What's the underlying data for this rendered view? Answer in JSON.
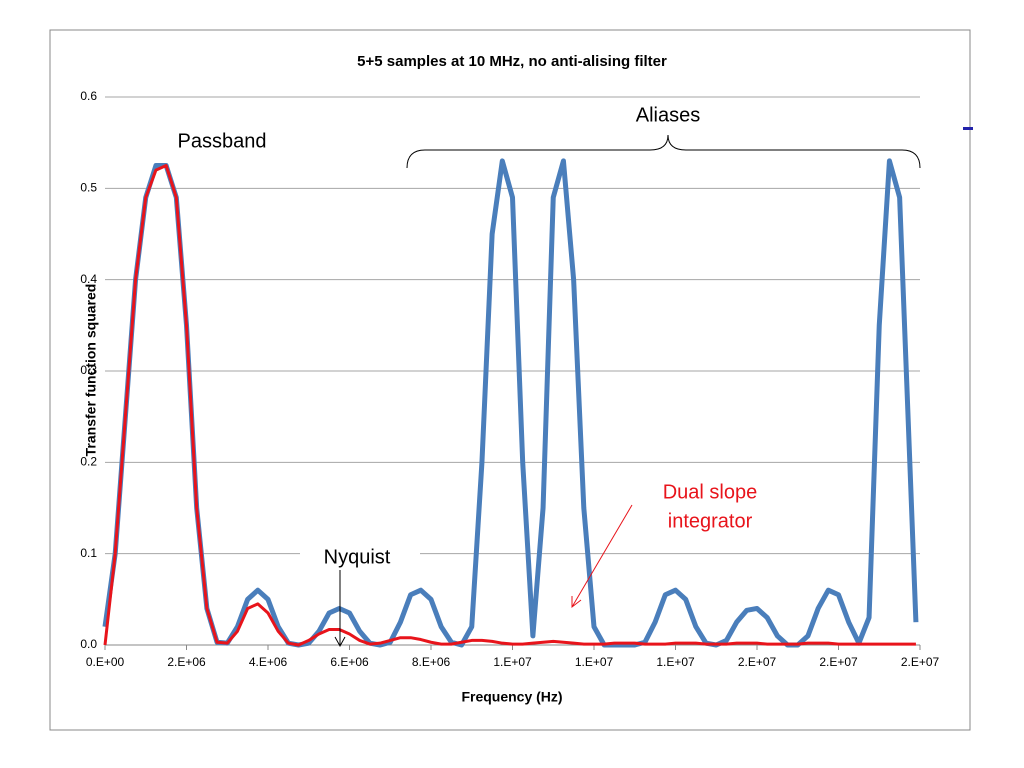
{
  "chart_data": {
    "type": "line",
    "title": "5+5 samples at 10 MHz, no anti-alising filter",
    "x_label": "Frequency (Hz)",
    "y_label": "Transfer function squared",
    "annotations": [
      "Passband",
      "Aliases",
      "Nyquist",
      "Dual slope",
      "integrator"
    ],
    "x": [
      0,
      250000,
      500000,
      750000,
      1000000,
      1250000,
      1500000,
      1750000,
      2000000,
      2250000,
      2500000,
      2750000,
      3000000,
      3250000,
      3500000,
      3750000,
      4000000,
      4250000,
      4500000,
      4750000,
      5000000,
      5250000,
      5500000,
      5750000,
      6000000,
      6250000,
      6500000,
      6750000,
      7000000,
      7250000,
      7500000,
      7750000,
      8000000,
      8250000,
      8500000,
      8750000,
      9000000,
      9250000,
      9500000,
      9750000,
      10000000,
      10250000,
      10500000,
      10750000,
      11000000,
      11250000,
      11500000,
      11750000,
      12000000,
      12250000,
      12500000,
      12750000,
      13000000,
      13250000,
      13500000,
      13750000,
      14000000,
      14250000,
      14500000,
      14750000,
      15000000,
      15250000,
      15500000,
      15750000,
      16000000,
      16250000,
      16500000,
      16750000,
      17000000,
      17250000,
      17500000,
      17750000,
      18000000,
      18250000,
      18500000,
      18750000,
      19000000,
      19250000,
      19500000,
      19750000,
      19900000
    ],
    "series": [
      {
        "color": "#4a7ebb",
        "values": [
          0.02,
          0.1,
          0.25,
          0.4,
          0.49,
          0.525,
          0.525,
          0.49,
          0.35,
          0.15,
          0.04,
          0.003,
          0.002,
          0.02,
          0.05,
          0.06,
          0.05,
          0.02,
          0.002,
          0.0,
          0.002,
          0.015,
          0.035,
          0.04,
          0.035,
          0.015,
          0.002,
          0.0,
          0.003,
          0.025,
          0.055,
          0.06,
          0.05,
          0.02,
          0.003,
          0.0,
          0.02,
          0.2,
          0.45,
          0.53,
          0.49,
          0.2,
          0.01,
          0.15,
          0.49,
          0.53,
          0.4,
          0.15,
          0.02,
          0.0,
          0.0,
          0.0,
          0.0,
          0.003,
          0.025,
          0.055,
          0.06,
          0.05,
          0.02,
          0.002,
          0.0,
          0.005,
          0.025,
          0.038,
          0.04,
          0.03,
          0.01,
          0.0,
          0.0,
          0.01,
          0.04,
          0.06,
          0.055,
          0.025,
          0.002,
          0.03,
          0.35,
          0.53,
          0.49,
          0.2,
          0.025
        ]
      },
      {
        "color": "#e8141b",
        "values": [
          0.0,
          0.1,
          0.25,
          0.4,
          0.49,
          0.52,
          0.525,
          0.49,
          0.35,
          0.15,
          0.04,
          0.003,
          0.002,
          0.015,
          0.04,
          0.045,
          0.035,
          0.015,
          0.002,
          0.0,
          0.005,
          0.012,
          0.017,
          0.017,
          0.012,
          0.005,
          0.001,
          0.002,
          0.005,
          0.008,
          0.008,
          0.006,
          0.003,
          0.001,
          0.001,
          0.003,
          0.005,
          0.005,
          0.004,
          0.002,
          0.001,
          0.001,
          0.002,
          0.003,
          0.004,
          0.003,
          0.002,
          0.001,
          0.001,
          0.001,
          0.002,
          0.002,
          0.002,
          0.001,
          0.001,
          0.001,
          0.002,
          0.002,
          0.002,
          0.001,
          0.001,
          0.001,
          0.002,
          0.002,
          0.002,
          0.001,
          0.001,
          0.001,
          0.001,
          0.002,
          0.002,
          0.002,
          0.001,
          0.001,
          0.001,
          0.001,
          0.001,
          0.001,
          0.001,
          0.001,
          0.001
        ]
      }
    ],
    "xlim": [
      0,
      20000000
    ],
    "xticks": [
      {
        "value": 0,
        "label": "0.E+00"
      },
      {
        "value": 2000000,
        "label": "2.E+06"
      },
      {
        "value": 4000000,
        "label": "4.E+06"
      },
      {
        "value": 6000000,
        "label": "6.E+06"
      },
      {
        "value": 8000000,
        "label": "8.E+06"
      },
      {
        "value": 10000000,
        "label": "1.E+07"
      },
      {
        "value": 12000000,
        "label": "1.E+07"
      },
      {
        "value": 14000000,
        "label": "1.E+07"
      },
      {
        "value": 16000000,
        "label": "2.E+07"
      },
      {
        "value": 18000000,
        "label": "2.E+07"
      },
      {
        "value": 20000000,
        "label": "2.E+07"
      }
    ],
    "ylim": [
      0,
      0.6
    ],
    "yticks": [
      {
        "value": 0,
        "label": "0.0"
      },
      0.1,
      0.2,
      0.3,
      0.4,
      0.5,
      0.6
    ],
    "grid": true
  }
}
